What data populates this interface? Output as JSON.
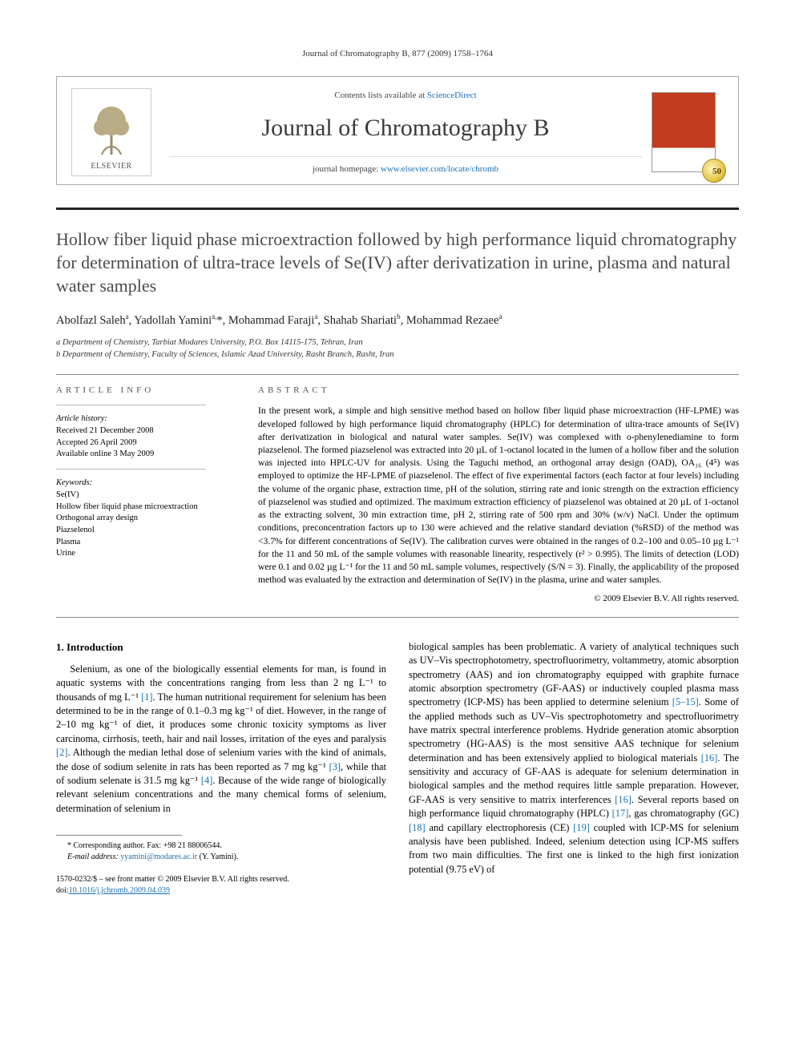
{
  "running_head": "Journal of Chromatography B, 877 (2009) 1758–1764",
  "masthead": {
    "contents_prefix": "Contents lists available at ",
    "contents_link": "ScienceDirect",
    "journal_name": "Journal of Chromatography B",
    "homepage_prefix": "journal homepage: ",
    "homepage_url": "www.elsevier.com/locate/chromb",
    "publisher_name": "ELSEVIER",
    "cover_badge": "50"
  },
  "title": "Hollow fiber liquid phase microextraction followed by high performance liquid chromatography for determination of ultra-trace levels of Se(IV) after derivatization in urine, plasma and natural water samples",
  "authors_html": "Abolfazl Saleh<sup>a</sup>, Yadollah Yamini<sup>a,</sup>*, Mohammad Faraji<sup>a</sup>, Shahab Shariati<sup>b</sup>, Mohammad Rezaee<sup>a</sup>",
  "affiliations": [
    "a Department of Chemistry, Tarbiat Modares University, P.O. Box 14115-175, Tehran, Iran",
    "b Department of Chemistry, Faculty of Sciences, Islamic Azad University, Rasht Branch, Rasht, Iran"
  ],
  "article_info": {
    "heading": "ARTICLE INFO",
    "history_label": "Article history:",
    "history": [
      "Received 21 December 2008",
      "Accepted 26 April 2009",
      "Available online 3 May 2009"
    ],
    "keywords_label": "Keywords:",
    "keywords": [
      "Se(IV)",
      "Hollow fiber liquid phase microextraction",
      "Orthogonal array design",
      "Piazselenol",
      "Plasma",
      "Urine"
    ]
  },
  "abstract": {
    "heading": "ABSTRACT",
    "text": "In the present work, a simple and high sensitive method based on hollow fiber liquid phase microextraction (HF-LPME) was developed followed by high performance liquid chromatography (HPLC) for determination of ultra-trace amounts of Se(IV) after derivatization in biological and natural water samples. Se(IV) was complexed with o-phenylenediamine to form piazselenol. The formed piazselenol was extracted into 20 µL of 1-octanol located in the lumen of a hollow fiber and the solution was injected into HPLC-UV for analysis. Using the Taguchi method, an orthogonal array design (OAD), OA₁₆ (4⁵) was employed to optimize the HF-LPME of piazselenol. The effect of five experimental factors (each factor at four levels) including the volume of the organic phase, extraction time, pH of the solution, stirring rate and ionic strength on the extraction efficiency of piazselenol was studied and optimized. The maximum extraction efficiency of piazselenol was obtained at 20 µL of 1-octanol as the extracting solvent, 30 min extraction time, pH 2, stirring rate of 500 rpm and 30% (w/v) NaCl. Under the optimum conditions, preconcentration factors up to 130 were achieved and the relative standard deviation (%RSD) of the method was <3.7% for different concentrations of Se(IV). The calibration curves were obtained in the ranges of 0.2–100 and 0.05–10 µg L⁻¹ for the 11 and 50 mL of the sample volumes with reasonable linearity, respectively (r² > 0.995). The limits of detection (LOD) were 0.1 and 0.02 µg L⁻¹ for the 11 and 50 mL sample volumes, respectively (S/N = 3). Finally, the applicability of the proposed method was evaluated by the extraction and determination of Se(IV) in the plasma, urine and water samples.",
    "copyright": "© 2009 Elsevier B.V. All rights reserved."
  },
  "intro": {
    "heading": "1.  Introduction",
    "para1": "Selenium, as one of the biologically essential elements for man, is found in aquatic systems with the concentrations ranging from less than 2 ng L⁻¹ to thousands of mg L⁻¹ [1]. The human nutritional requirement for selenium has been determined to be in the range of 0.1–0.3 mg kg⁻¹ of diet. However, in the range of 2–10 mg kg⁻¹ of diet, it produces some chronic toxicity symptoms as liver carcinoma, cirrhosis, teeth, hair and nail losses, irritation of the eyes and paralysis [2]. Although the median lethal dose of selenium varies with the kind of animals, the dose of sodium selenite in rats has been reported as 7 mg kg⁻¹ [3], while that of sodium selenate is 31.5 mg kg⁻¹ [4]. Because of the wide range of biologically relevant selenium concentrations and the many chemical forms of selenium, determination of selenium in",
    "para2": "biological samples has been problematic. A variety of analytical techniques such as UV–Vis spectrophotometry, spectrofluorimetry, voltammetry, atomic absorption spectrometry (AAS) and ion chromatography equipped with graphite furnace atomic absorption spectrometry (GF-AAS) or inductively coupled plasma mass spectrometry (ICP-MS) has been applied to determine selenium [5–15]. Some of the applied methods such as UV–Vis spectrophotometry and spectrofluorimetry have matrix spectral interference problems. Hydride generation atomic absorption spectrometry (HG-AAS) is the most sensitive AAS technique for selenium determination and has been extensively applied to biological materials [16]. The sensitivity and accuracy of GF-AAS is adequate for selenium determination in biological samples and the method requires little sample preparation. However, GF-AAS is very sensitive to matrix interferences [16]. Several reports based on high performance liquid chromatography (HPLC) [17], gas chromatography (GC) [18] and capillary electrophoresis (CE) [19] coupled with ICP-MS for selenium analysis have been published. Indeed, selenium detection using ICP-MS suffers from two main difficulties. The first one is linked to the high first ionization potential (9.75 eV) of"
  },
  "footnotes": {
    "corr": "* Corresponding author. Fax: +98 21 88006544.",
    "email_label": "E-mail address: ",
    "email": "yyamini@modares.ac.ir",
    "email_paren": " (Y. Yamini).",
    "issn": "1570-0232/$ – see front matter © 2009 Elsevier B.V. All rights reserved.",
    "doi_prefix": "doi:",
    "doi": "10.1016/j.jchromb.2009.04.039"
  },
  "colors": {
    "link": "#1b6fb3",
    "rule": "#222222",
    "cover_top": "#c23b1d"
  }
}
